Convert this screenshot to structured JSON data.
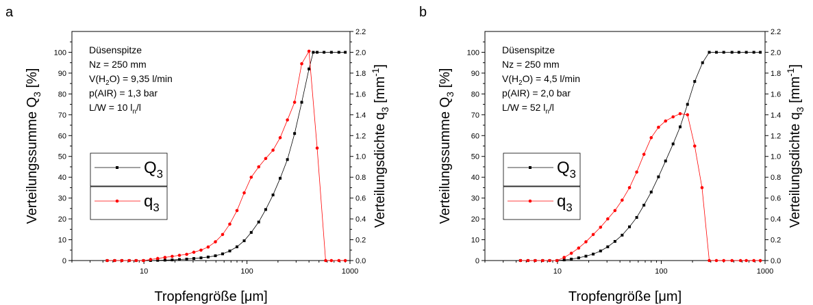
{
  "chart_data": [
    {
      "panel_label": "a",
      "type": "line",
      "xscale": "log",
      "xlim": [
        2,
        1000
      ],
      "xticks": [
        {
          "v": 10,
          "label": "10"
        },
        {
          "v": 100,
          "label": "100"
        },
        {
          "v": 1000,
          "label": "1000"
        }
      ],
      "xlabel": "Tropfengröße [μm]",
      "ylabel_left": {
        "text": "Verteilungssumme Q",
        "sub": "3",
        "tail": " [%]"
      },
      "ylabel_right": {
        "text": "Verteilungsdichte q",
        "sub": "3",
        "tail": " [mm",
        "sup": "-1",
        "tail2": "]"
      },
      "ylim_left": [
        0,
        110
      ],
      "yticks_left": [
        "0",
        "10",
        "20",
        "30",
        "40",
        "50",
        "60",
        "70",
        "80",
        "90",
        "100"
      ],
      "ylim_right": [
        0,
        2.2
      ],
      "yticks_right": [
        "0.0",
        "0.2",
        "0.4",
        "0.6",
        "0.8",
        "1.0",
        "1.2",
        "1.4",
        "1.6",
        "1.8",
        "2.0",
        "2.2"
      ],
      "annotation": [
        {
          "text": "Düsenspitze"
        },
        {
          "text": "Nz = 250 mm"
        },
        {
          "text": "V(H",
          "sub": "2",
          "tail": "O) = 9,35 l/min"
        },
        {
          "text": "p(AIR) = 1,3 bar"
        },
        {
          "text": "L/W = 10 l",
          "sub": "n",
          "tail": "/l"
        }
      ],
      "legend": [
        {
          "name": "Q",
          "sub": "3",
          "color": "#000000",
          "marker": "square"
        },
        {
          "name": "q",
          "sub": "3",
          "color": "#ff0000",
          "marker": "circle"
        }
      ],
      "series": [
        {
          "name": "Q3",
          "axis": "left",
          "color": "#000000",
          "marker": "square",
          "x": [
            4.4,
            5.2,
            6.1,
            7.2,
            8.4,
            9.9,
            11.6,
            13.6,
            16.0,
            18.8,
            22.1,
            26.0,
            30.5,
            35.8,
            42.0,
            49.4,
            58.0,
            68.1,
            80.0,
            94.0,
            110,
            130,
            152,
            179,
            210,
            247,
            290,
            340,
            400,
            440,
            480,
            560,
            660,
            780,
            900
          ],
          "values": [
            0,
            0,
            0,
            0,
            0,
            0,
            0,
            0.1,
            0.2,
            0.3,
            0.5,
            0.7,
            1.0,
            1.3,
            1.7,
            2.3,
            3.2,
            4.6,
            6.6,
            9.5,
            13.5,
            18.5,
            24.5,
            31.5,
            39.5,
            48.5,
            61,
            76,
            92,
            100,
            100,
            100,
            100,
            100,
            100
          ]
        },
        {
          "name": "q3",
          "axis": "right",
          "color": "#ff0000",
          "marker": "circle",
          "x": [
            4.4,
            5.2,
            6.1,
            7.2,
            8.4,
            9.9,
            11.6,
            13.6,
            16.0,
            18.8,
            22.1,
            26.0,
            30.5,
            35.8,
            42.0,
            49.4,
            58.0,
            68.1,
            80.0,
            94.0,
            110,
            130,
            152,
            179,
            210,
            247,
            290,
            340,
            400,
            480,
            580,
            660,
            780,
            900
          ],
          "values": [
            0,
            0,
            0,
            0,
            0,
            0,
            0.01,
            0.02,
            0.03,
            0.04,
            0.05,
            0.06,
            0.08,
            0.1,
            0.13,
            0.18,
            0.25,
            0.35,
            0.48,
            0.65,
            0.8,
            0.9,
            0.98,
            1.06,
            1.18,
            1.35,
            1.52,
            1.89,
            2.01,
            1.08,
            0,
            0,
            0,
            0
          ]
        }
      ]
    },
    {
      "panel_label": "b",
      "type": "line",
      "xscale": "log",
      "xlim": [
        2,
        1000
      ],
      "xticks": [
        {
          "v": 10,
          "label": "10"
        },
        {
          "v": 100,
          "label": "100"
        },
        {
          "v": 1000,
          "label": "1000"
        }
      ],
      "xlabel": "Tropfengröße [μm]",
      "ylabel_left": {
        "text": "Verteilungssumme Q",
        "sub": "3",
        "tail": " [%]"
      },
      "ylabel_right": {
        "text": "Verteilungsdichte q",
        "sub": "3",
        "tail": " [mm",
        "sup": "-1",
        "tail2": "]"
      },
      "ylim_left": [
        0,
        110
      ],
      "yticks_left": [
        "0",
        "10",
        "20",
        "30",
        "40",
        "50",
        "60",
        "70",
        "80",
        "90",
        "100"
      ],
      "ylim_right": [
        0,
        2.2
      ],
      "yticks_right": [
        "0.0",
        "0.2",
        "0.4",
        "0.6",
        "0.8",
        "1.0",
        "1.2",
        "1.4",
        "1.6",
        "1.8",
        "2.0",
        "2.2"
      ],
      "annotation": [
        {
          "text": "Düsenspitze"
        },
        {
          "text": "Nz = 250 mm"
        },
        {
          "text": "V(H",
          "sub": "2",
          "tail": "O) = 4,5 l/min"
        },
        {
          "text": "p(AIR) = 2,0 bar"
        },
        {
          "text": "L/W = 52 l",
          "sub": "n",
          "tail": "/l"
        }
      ],
      "legend": [
        {
          "name": "Q",
          "sub": "3",
          "color": "#000000",
          "marker": "square"
        },
        {
          "name": "q",
          "sub": "3",
          "color": "#ff0000",
          "marker": "circle"
        }
      ],
      "series": [
        {
          "name": "Q3",
          "axis": "left",
          "color": "#000000",
          "marker": "square",
          "x": [
            4.4,
            5.2,
            6.1,
            7.2,
            8.4,
            9.9,
            11.6,
            13.6,
            16.0,
            18.8,
            22.1,
            26.0,
            30.5,
            35.8,
            42.0,
            49.4,
            58.0,
            68.1,
            80.0,
            94.0,
            110,
            130,
            152,
            179,
            210,
            250,
            290,
            340,
            400,
            480,
            560,
            660,
            780,
            900
          ],
          "values": [
            0,
            0,
            0,
            0,
            0,
            0,
            0.3,
            0.7,
            1.3,
            2.1,
            3.1,
            4.6,
            6.6,
            9.2,
            12.2,
            16.2,
            20.7,
            26.6,
            32.9,
            40.2,
            47.8,
            56.0,
            64.2,
            75.0,
            86.0,
            95.0,
            100,
            100,
            100,
            100,
            100,
            100,
            100,
            100
          ]
        },
        {
          "name": "q3",
          "axis": "right",
          "color": "#ff0000",
          "marker": "circle",
          "x": [
            4.4,
            5.2,
            6.1,
            7.2,
            8.4,
            9.9,
            11.6,
            13.6,
            16.0,
            18.8,
            22.1,
            26.0,
            30.5,
            35.8,
            42.0,
            49.4,
            58.0,
            68.1,
            80.0,
            94.0,
            110,
            130,
            152,
            179,
            210,
            247,
            290,
            340,
            400,
            480,
            580,
            660,
            780,
            900
          ],
          "values": [
            0,
            0,
            0,
            0,
            0,
            0,
            0.03,
            0.07,
            0.12,
            0.18,
            0.25,
            0.32,
            0.4,
            0.48,
            0.58,
            0.7,
            0.85,
            1.02,
            1.18,
            1.28,
            1.34,
            1.38,
            1.41,
            1.4,
            1.1,
            0.7,
            0,
            0,
            0,
            0,
            0,
            0,
            0,
            0
          ]
        }
      ]
    }
  ]
}
